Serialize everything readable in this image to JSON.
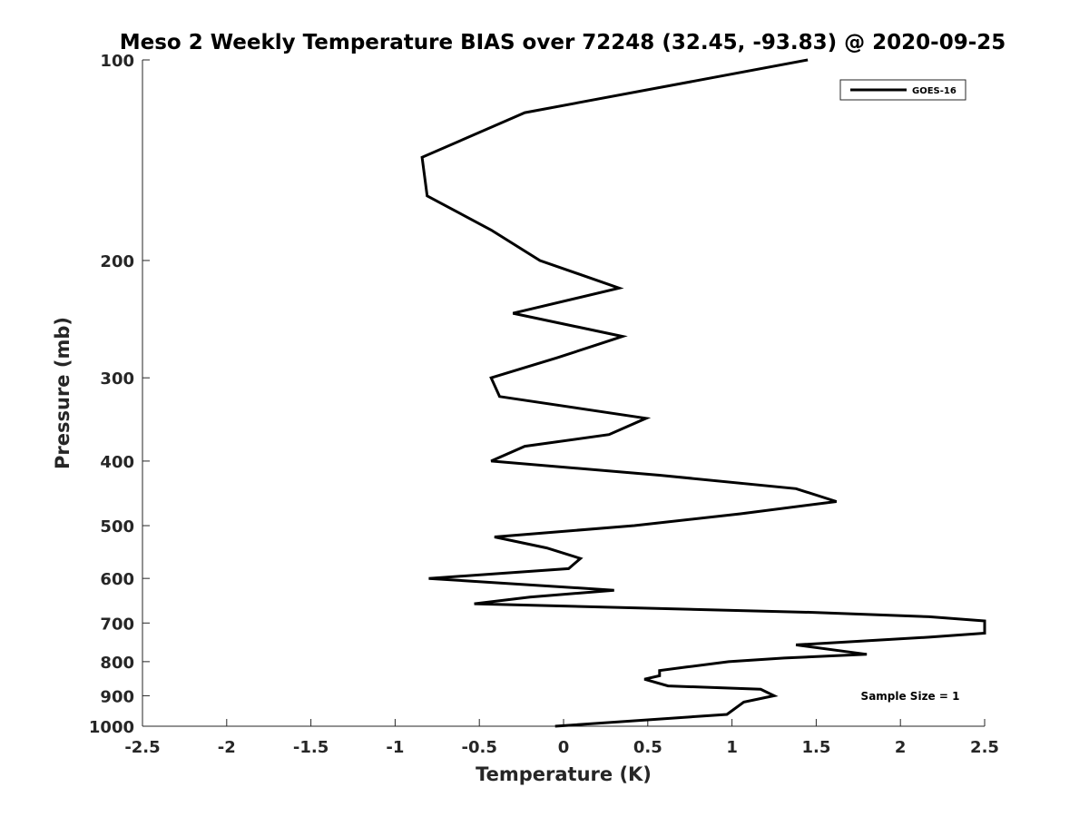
{
  "chart_data": {
    "type": "line",
    "title": "Meso 2 Weekly Temperature BIAS over 72248 (32.45, -93.83) @ 2020-09-25",
    "xlabel": "Temperature (K)",
    "ylabel": "Pressure (mb)",
    "xlim": [
      -2.5,
      2.5
    ],
    "ylim": [
      100,
      1000
    ],
    "y_scale": "log",
    "y_reversed": true,
    "grid": false,
    "legend_position": "top-right",
    "x_ticks": [
      "-2.5",
      "-2",
      "-1.5",
      "-1",
      "-0.5",
      "0",
      "0.5",
      "1",
      "1.5",
      "2",
      "2.5"
    ],
    "x_tick_values": [
      -2.5,
      -2,
      -1.5,
      -1,
      -0.5,
      0,
      0.5,
      1,
      1.5,
      2,
      2.5
    ],
    "y_ticks": [
      "100",
      "200",
      "300",
      "400",
      "500",
      "600",
      "700",
      "800",
      "900",
      "1000"
    ],
    "y_tick_values": [
      100,
      200,
      300,
      400,
      500,
      600,
      700,
      800,
      900,
      1000
    ],
    "series": [
      {
        "name": "GOES-16",
        "color": "#000000",
        "points": [
          [
            1.45,
            100
          ],
          [
            -0.23,
            120
          ],
          [
            -0.84,
            140
          ],
          [
            -0.81,
            160
          ],
          [
            -0.43,
            180
          ],
          [
            -0.14,
            200
          ],
          [
            0.33,
            220
          ],
          [
            -0.3,
            240
          ],
          [
            0.35,
            260
          ],
          [
            -0.04,
            280
          ],
          [
            -0.43,
            300
          ],
          [
            -0.38,
            320
          ],
          [
            0.49,
            345
          ],
          [
            0.27,
            365
          ],
          [
            -0.23,
            380
          ],
          [
            -0.43,
            400
          ],
          [
            0.57,
            420
          ],
          [
            1.38,
            440
          ],
          [
            1.62,
            460
          ],
          [
            1.05,
            480
          ],
          [
            0.42,
            500
          ],
          [
            -0.41,
            520
          ],
          [
            -0.1,
            540
          ],
          [
            0.1,
            560
          ],
          [
            0.03,
            580
          ],
          [
            -0.8,
            600
          ],
          [
            0.3,
            625
          ],
          [
            -0.2,
            640
          ],
          [
            -0.53,
            655
          ],
          [
            0.5,
            665
          ],
          [
            1.5,
            675
          ],
          [
            2.17,
            685
          ],
          [
            2.5,
            695
          ],
          [
            2.5,
            725
          ],
          [
            2.17,
            735
          ],
          [
            1.38,
            755
          ],
          [
            1.8,
            780
          ],
          [
            1.31,
            790
          ],
          [
            0.98,
            800
          ],
          [
            0.73,
            815
          ],
          [
            0.57,
            825
          ],
          [
            0.57,
            840
          ],
          [
            0.48,
            850
          ],
          [
            0.62,
            870
          ],
          [
            1.17,
            880
          ],
          [
            1.25,
            900
          ],
          [
            1.07,
            920
          ],
          [
            0.97,
            960
          ],
          [
            -0.05,
            1000
          ]
        ]
      }
    ],
    "annotations": [
      {
        "text": "Sample Size = 1",
        "position": "bottom-right"
      }
    ]
  }
}
